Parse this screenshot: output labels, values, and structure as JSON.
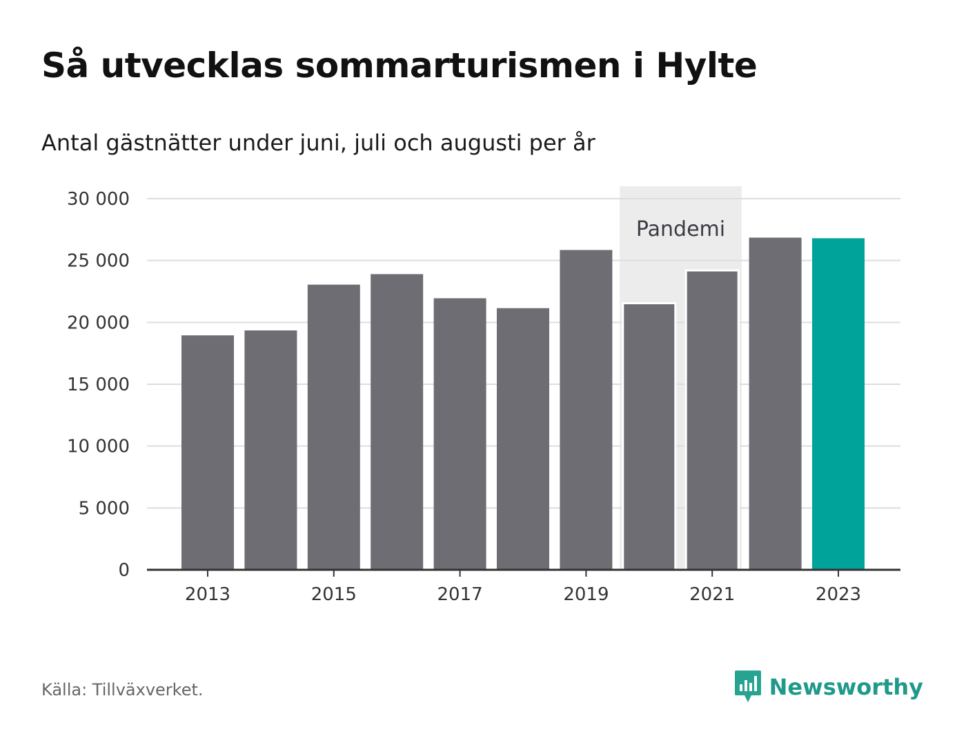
{
  "header": {
    "title": "Så utvecklas sommarturismen i Hylte",
    "subtitle": "Antal gästnätter under juni, juli och augusti per år"
  },
  "chart_data": {
    "type": "bar",
    "categories": [
      "2013",
      "2014",
      "2015",
      "2016",
      "2017",
      "2018",
      "2019",
      "2020",
      "2021",
      "2022",
      "2023"
    ],
    "values": [
      18950,
      19350,
      23050,
      23900,
      21950,
      21150,
      25850,
      21550,
      24200,
      26850,
      26800
    ],
    "ylim": [
      0,
      30000
    ],
    "y_ticks": [
      0,
      5000,
      10000,
      15000,
      20000,
      25000,
      30000
    ],
    "y_tick_labels": [
      "0",
      "5 000",
      "10 000",
      "15 000",
      "20 000",
      "25 000",
      "30 000"
    ],
    "x_tick_labels": [
      "2013",
      "2015",
      "2017",
      "2019",
      "2021",
      "2023"
    ],
    "grid": true,
    "colors": {
      "default": "#6e6d73",
      "highlight": "#00a39a",
      "pandemic_band": "#ececec",
      "grid": "#dddddd",
      "axis": "#333333"
    },
    "highlight_category": "2023",
    "annotation": {
      "label": "Pandemi",
      "from": "2020",
      "to": "2021"
    }
  },
  "footer": {
    "source": "Källa: Tillväxverket.",
    "brand": "Newsworthy",
    "brand_icon": "newsworthy-logo-icon"
  }
}
